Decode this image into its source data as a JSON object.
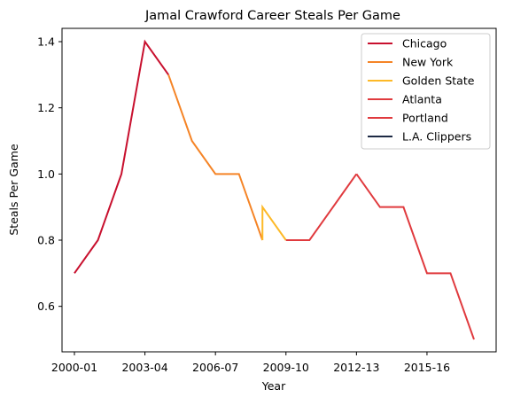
{
  "chart_data": {
    "type": "line",
    "title": "Jamal Crawford Career Steals Per Game",
    "xlabel": "Year",
    "ylabel": "Steals Per Game",
    "xlim": [
      2000,
      2018
    ],
    "ylim": [
      0.45,
      1.45
    ],
    "x_ticks": [
      {
        "x": 2000,
        "label": "2000-01"
      },
      {
        "x": 2003,
        "label": "2003-04"
      },
      {
        "x": 2006,
        "label": "2006-07"
      },
      {
        "x": 2009,
        "label": "2009-10"
      },
      {
        "x": 2012,
        "label": "2012-13"
      },
      {
        "x": 2015,
        "label": "2015-16"
      }
    ],
    "y_ticks": [
      0.6,
      0.8,
      1.0,
      1.2,
      1.4
    ],
    "legend_position": "top-right",
    "series": [
      {
        "name": "Chicago",
        "color": "#c8102e",
        "points": [
          [
            2000,
            0.7
          ],
          [
            2001,
            0.8
          ],
          [
            2002,
            1.0
          ],
          [
            2003,
            1.4
          ],
          [
            2004,
            1.3
          ]
        ]
      },
      {
        "name": "New York",
        "color": "#f58426",
        "points": [
          [
            2004,
            1.3
          ],
          [
            2005,
            1.1
          ],
          [
            2006,
            1.0
          ],
          [
            2007,
            1.0
          ],
          [
            2008,
            0.8
          ]
        ]
      },
      {
        "name": "Golden State",
        "color": "#fdb927",
        "points": [
          [
            2008,
            0.8
          ],
          [
            2008,
            0.9
          ],
          [
            2009,
            0.8
          ]
        ]
      },
      {
        "name": "Atlanta",
        "color": "#e03a3e",
        "points": [
          [
            2009,
            0.8
          ],
          [
            2010,
            0.8
          ],
          [
            2011,
            0.9
          ],
          [
            2012,
            1.0
          ]
        ]
      },
      {
        "name": "Portland",
        "color": "#e03a3e",
        "points": [
          [
            2012,
            1.0
          ],
          [
            2013,
            0.9
          ],
          [
            2014,
            0.9
          ],
          [
            2015,
            0.7
          ],
          [
            2016,
            0.7
          ],
          [
            2017,
            0.5
          ]
        ]
      },
      {
        "name": "L.A. Clippers",
        "color": "#1d2a44",
        "points": []
      }
    ]
  }
}
